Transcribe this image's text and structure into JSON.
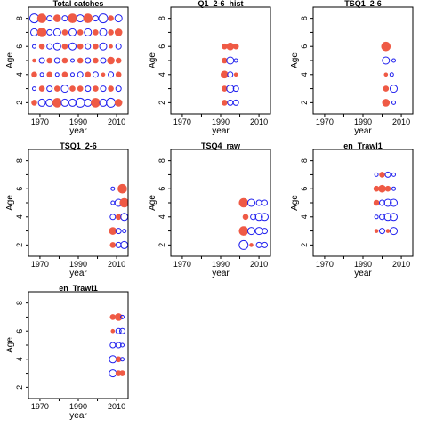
{
  "colors": {
    "positive": "#ef5a45",
    "negative": "#1f1fee"
  },
  "chart_data": [
    {
      "type": "scatter",
      "title": "Total catches",
      "xlabel": "year",
      "ylabel": "Age",
      "xlim": [
        1964,
        2016
      ],
      "ylim": [
        1.2,
        8.8
      ],
      "xticks": [
        "1970",
        "1990",
        "2010"
      ],
      "yticks": [
        "2",
        "4",
        "6",
        "8"
      ],
      "points": [
        [
          1967,
          8,
          5,
          "n"
        ],
        [
          1971,
          8,
          5,
          "p"
        ],
        [
          1975,
          8,
          3,
          "n"
        ],
        [
          1979,
          8,
          4,
          "p"
        ],
        [
          1983,
          8,
          3,
          "n"
        ],
        [
          1987,
          8,
          5,
          "p"
        ],
        [
          1991,
          8,
          4,
          "n"
        ],
        [
          1995,
          8,
          5,
          "p"
        ],
        [
          1999,
          8,
          3,
          "n"
        ],
        [
          2003,
          8,
          5,
          "n"
        ],
        [
          2007,
          8,
          3,
          "p"
        ],
        [
          2011,
          8,
          4,
          "n"
        ],
        [
          1967,
          7,
          4,
          "n"
        ],
        [
          1971,
          7,
          5,
          "p"
        ],
        [
          1975,
          7,
          3,
          "n"
        ],
        [
          1979,
          7,
          4,
          "n"
        ],
        [
          1983,
          7,
          3,
          "p"
        ],
        [
          1987,
          7,
          4,
          "n"
        ],
        [
          1991,
          7,
          3,
          "p"
        ],
        [
          1995,
          7,
          4,
          "n"
        ],
        [
          1999,
          7,
          3,
          "p"
        ],
        [
          2003,
          7,
          4,
          "n"
        ],
        [
          2007,
          7,
          3,
          "p"
        ],
        [
          2011,
          7,
          4,
          "p"
        ],
        [
          1967,
          6,
          2,
          "n"
        ],
        [
          1971,
          6,
          3,
          "p"
        ],
        [
          1975,
          6,
          3,
          "n"
        ],
        [
          1979,
          6,
          4,
          "n"
        ],
        [
          1983,
          6,
          3,
          "p"
        ],
        [
          1987,
          6,
          4,
          "n"
        ],
        [
          1991,
          6,
          3,
          "p"
        ],
        [
          1995,
          6,
          3,
          "n"
        ],
        [
          1999,
          6,
          3,
          "p"
        ],
        [
          2003,
          6,
          4,
          "n"
        ],
        [
          2007,
          6,
          2,
          "p"
        ],
        [
          2011,
          6,
          3,
          "n"
        ],
        [
          1967,
          5,
          2,
          "p"
        ],
        [
          1971,
          5,
          3,
          "n"
        ],
        [
          1975,
          5,
          3,
          "p"
        ],
        [
          1979,
          5,
          3,
          "n"
        ],
        [
          1983,
          5,
          3,
          "p"
        ],
        [
          1987,
          5,
          2,
          "n"
        ],
        [
          1991,
          5,
          3,
          "p"
        ],
        [
          1995,
          5,
          3,
          "n"
        ],
        [
          1999,
          5,
          3,
          "p"
        ],
        [
          2003,
          5,
          3,
          "n"
        ],
        [
          2007,
          5,
          4,
          "p"
        ],
        [
          2011,
          5,
          3,
          "p"
        ],
        [
          1967,
          4,
          3,
          "p"
        ],
        [
          1971,
          4,
          2,
          "n"
        ],
        [
          1975,
          4,
          3,
          "p"
        ],
        [
          1979,
          4,
          2,
          "n"
        ],
        [
          1983,
          4,
          3,
          "p"
        ],
        [
          1987,
          4,
          2,
          "n"
        ],
        [
          1991,
          4,
          3,
          "n"
        ],
        [
          1995,
          4,
          3,
          "p"
        ],
        [
          1999,
          4,
          3,
          "n"
        ],
        [
          2003,
          4,
          2,
          "p"
        ],
        [
          2007,
          4,
          3,
          "n"
        ],
        [
          2011,
          4,
          3,
          "p"
        ],
        [
          1967,
          3,
          2,
          "n"
        ],
        [
          1971,
          3,
          3,
          "p"
        ],
        [
          1975,
          3,
          3,
          "n"
        ],
        [
          1979,
          3,
          3,
          "p"
        ],
        [
          1983,
          3,
          4,
          "n"
        ],
        [
          1987,
          3,
          3,
          "p"
        ],
        [
          1991,
          3,
          3,
          "p"
        ],
        [
          1995,
          3,
          3,
          "n"
        ],
        [
          1999,
          3,
          3,
          "p"
        ],
        [
          2003,
          3,
          3,
          "n"
        ],
        [
          2007,
          3,
          3,
          "p"
        ],
        [
          2011,
          3,
          3,
          "n"
        ],
        [
          1967,
          2,
          3,
          "p"
        ],
        [
          1971,
          2,
          4,
          "n"
        ],
        [
          1975,
          2,
          4,
          "n"
        ],
        [
          1979,
          2,
          5,
          "p"
        ],
        [
          1983,
          2,
          4,
          "n"
        ],
        [
          1987,
          2,
          4,
          "n"
        ],
        [
          1991,
          2,
          5,
          "n"
        ],
        [
          1995,
          2,
          4,
          "n"
        ],
        [
          1999,
          2,
          5,
          "p"
        ],
        [
          2003,
          2,
          4,
          "n"
        ],
        [
          2007,
          2,
          5,
          "n"
        ],
        [
          2011,
          2,
          4,
          "p"
        ]
      ]
    },
    {
      "type": "scatter",
      "title": "Q1_2-6_hist",
      "xlabel": "year",
      "ylabel": "Age",
      "xlim": [
        1964,
        2016
      ],
      "ylim": [
        1.2,
        8.8
      ],
      "xticks": [
        "1970",
        "1990",
        "2010"
      ],
      "yticks": [
        "2",
        "4",
        "6",
        "8"
      ],
      "points": [
        [
          1992,
          6,
          3,
          "p"
        ],
        [
          1995,
          6,
          4,
          "p"
        ],
        [
          1998,
          6,
          3,
          "p"
        ],
        [
          1992,
          5,
          3,
          "p"
        ],
        [
          1995,
          5,
          4,
          "n"
        ],
        [
          1998,
          5,
          2,
          "n"
        ],
        [
          1992,
          4,
          4,
          "p"
        ],
        [
          1995,
          4,
          3,
          "n"
        ],
        [
          1998,
          4,
          2,
          "p"
        ],
        [
          1992,
          3,
          3,
          "p"
        ],
        [
          1995,
          3,
          4,
          "n"
        ],
        [
          1998,
          3,
          3,
          "n"
        ],
        [
          1992,
          2,
          3,
          "p"
        ],
        [
          1995,
          2,
          3,
          "n"
        ],
        [
          1998,
          2,
          3,
          "n"
        ]
      ]
    },
    {
      "type": "scatter",
      "title": "TSQ1_2-6",
      "xlabel": "year",
      "ylabel": "Age",
      "xlim": [
        1964,
        2016
      ],
      "ylim": [
        1.2,
        8.8
      ],
      "xticks": [
        "1970",
        "1990",
        "2010"
      ],
      "yticks": [
        "2",
        "4",
        "6",
        "8"
      ],
      "points": [
        [
          2002,
          6,
          5,
          "p"
        ],
        [
          2002,
          5,
          4,
          "n"
        ],
        [
          2006,
          5,
          2,
          "n"
        ],
        [
          2002,
          4,
          2,
          "p"
        ],
        [
          2005,
          4,
          2,
          "n"
        ],
        [
          2002,
          3,
          3,
          "p"
        ],
        [
          2006,
          3,
          4,
          "n"
        ],
        [
          2002,
          2,
          4,
          "p"
        ],
        [
          2006,
          2,
          2,
          "n"
        ]
      ]
    },
    {
      "type": "scatter",
      "title": "TSQ1_2-6",
      "xlabel": "year",
      "ylabel": "Age",
      "xlim": [
        1964,
        2016
      ],
      "ylim": [
        1.2,
        8.8
      ],
      "xticks": [
        "1970",
        "1990",
        "2010"
      ],
      "yticks": [
        "2",
        "4",
        "6",
        "8"
      ],
      "points": [
        [
          2008,
          6,
          2,
          "n"
        ],
        [
          2013,
          6,
          5,
          "p"
        ],
        [
          2008,
          5,
          2,
          "n"
        ],
        [
          2011,
          5,
          4,
          "n"
        ],
        [
          2014,
          5,
          5,
          "p"
        ],
        [
          2008,
          4,
          3,
          "n"
        ],
        [
          2011,
          4,
          3,
          "p"
        ],
        [
          2014,
          4,
          4,
          "n"
        ],
        [
          2008,
          3,
          4,
          "p"
        ],
        [
          2011,
          3,
          3,
          "n"
        ],
        [
          2014,
          3,
          2,
          "n"
        ],
        [
          2008,
          2,
          3,
          "p"
        ],
        [
          2011,
          2,
          3,
          "n"
        ],
        [
          2014,
          2,
          4,
          "n"
        ]
      ]
    },
    {
      "type": "scatter",
      "title": "TSQ4_raw",
      "xlabel": "year",
      "ylabel": "Age",
      "xlim": [
        1964,
        2016
      ],
      "ylim": [
        1.2,
        8.8
      ],
      "xticks": [
        "1970",
        "1990",
        "2010"
      ],
      "yticks": [
        "2",
        "4",
        "6",
        "8"
      ],
      "points": [
        [
          2002,
          5,
          5,
          "p"
        ],
        [
          2006,
          5,
          4,
          "n"
        ],
        [
          2010,
          5,
          3,
          "n"
        ],
        [
          2013,
          5,
          3,
          "n"
        ],
        [
          2003,
          4,
          3,
          "p"
        ],
        [
          2007,
          4,
          3,
          "n"
        ],
        [
          2010,
          4,
          4,
          "n"
        ],
        [
          2013,
          4,
          4,
          "n"
        ],
        [
          2002,
          3,
          5,
          "p"
        ],
        [
          2006,
          3,
          4,
          "n"
        ],
        [
          2010,
          3,
          4,
          "n"
        ],
        [
          2013,
          3,
          3,
          "n"
        ],
        [
          2002,
          2,
          5,
          "n"
        ],
        [
          2006,
          2,
          2,
          "p"
        ],
        [
          2010,
          2,
          3,
          "n"
        ],
        [
          2013,
          2,
          3,
          "n"
        ]
      ]
    },
    {
      "type": "scatter",
      "title": "en_Trawl1",
      "xlabel": "year",
      "ylabel": "Age",
      "xlim": [
        1964,
        2016
      ],
      "ylim": [
        1.2,
        8.8
      ],
      "xticks": [
        "1970",
        "1990",
        "2010"
      ],
      "yticks": [
        "2",
        "4",
        "6",
        "8"
      ],
      "points": [
        [
          1997,
          7,
          2,
          "n"
        ],
        [
          2000,
          7,
          3,
          "p"
        ],
        [
          2003,
          7,
          3,
          "n"
        ],
        [
          2006,
          7,
          2,
          "n"
        ],
        [
          1997,
          6,
          3,
          "p"
        ],
        [
          2000,
          6,
          4,
          "p"
        ],
        [
          2003,
          6,
          3,
          "p"
        ],
        [
          2006,
          6,
          2,
          "n"
        ],
        [
          1997,
          5,
          3,
          "p"
        ],
        [
          2000,
          5,
          3,
          "n"
        ],
        [
          2003,
          5,
          4,
          "n"
        ],
        [
          2006,
          5,
          4,
          "n"
        ],
        [
          1997,
          4,
          2,
          "n"
        ],
        [
          2000,
          4,
          3,
          "n"
        ],
        [
          2003,
          4,
          4,
          "n"
        ],
        [
          2006,
          4,
          4,
          "n"
        ],
        [
          1997,
          3,
          2,
          "p"
        ],
        [
          2000,
          3,
          3,
          "n"
        ],
        [
          2003,
          3,
          2,
          "p"
        ],
        [
          2006,
          3,
          4,
          "n"
        ]
      ]
    },
    {
      "type": "scatter",
      "title": "en_Trawl1",
      "xlabel": "year",
      "ylabel": "Age",
      "xlim": [
        1964,
        2016
      ],
      "ylim": [
        1.2,
        8.8
      ],
      "xticks": [
        "1970",
        "1990",
        "2010"
      ],
      "yticks": [
        "2",
        "4",
        "6",
        "8"
      ],
      "points": [
        [
          2008,
          7,
          3,
          "p"
        ],
        [
          2011,
          7,
          4,
          "p"
        ],
        [
          2013,
          7,
          2,
          "n"
        ],
        [
          2008,
          6,
          2,
          "p"
        ],
        [
          2011,
          6,
          3,
          "n"
        ],
        [
          2013,
          6,
          3,
          "n"
        ],
        [
          2008,
          5,
          3,
          "n"
        ],
        [
          2011,
          5,
          3,
          "n"
        ],
        [
          2013,
          5,
          2,
          "n"
        ],
        [
          2008,
          4,
          4,
          "n"
        ],
        [
          2011,
          4,
          3,
          "p"
        ],
        [
          2013,
          4,
          2,
          "n"
        ],
        [
          2008,
          3,
          4,
          "n"
        ],
        [
          2011,
          3,
          3,
          "p"
        ],
        [
          2013,
          3,
          3,
          "p"
        ]
      ]
    }
  ]
}
